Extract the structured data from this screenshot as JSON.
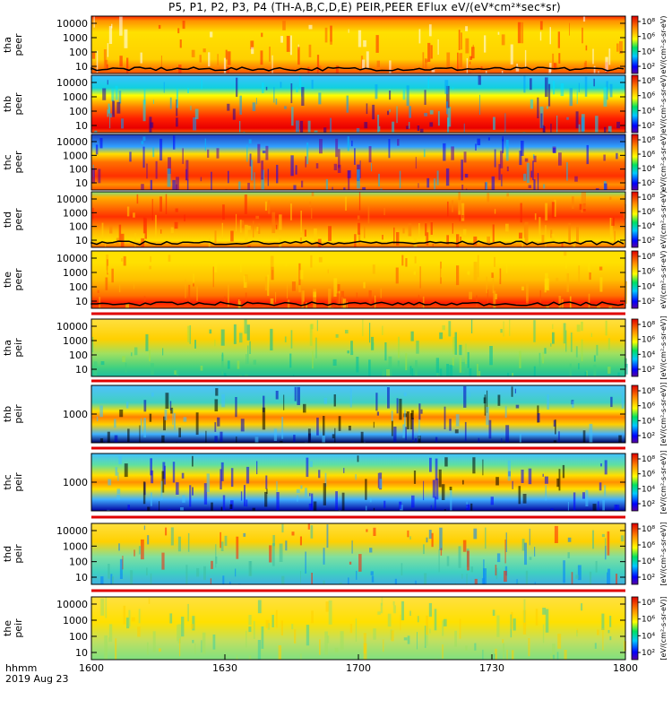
{
  "title": "P5, P1, P2, P3, P4 (TH-A,B,C,D,E) PEIR,PEER EFlux eV/(eV*cm²*sec*sr)",
  "footer": {
    "line1": "hhmm",
    "line2": "2019 Aug 23"
  },
  "chart_data": {
    "type": "heatmap",
    "x": {
      "ticks": [
        "1600",
        "1630",
        "1700",
        "1730",
        "1800"
      ],
      "range": [
        "16:00",
        "18:00"
      ]
    },
    "colorbar": {
      "scale": "log",
      "ticks": [
        "10²",
        "10⁴",
        "10⁶",
        "10⁸"
      ],
      "unit_label_peer": "eV/(cm²-s-sr-eV)",
      "unit_label_peir": "[eV/(cm²-s-sr-eV)]"
    },
    "panels": [
      {
        "label": [
          "tha",
          "peer"
        ],
        "yscale": "log",
        "yticks": [
          "10000",
          "1000",
          "100",
          "10"
        ]
      },
      {
        "label": [
          "thb",
          "peer"
        ],
        "yscale": "log",
        "yticks": [
          "10000",
          "1000",
          "100",
          "10"
        ]
      },
      {
        "label": [
          "thc",
          "peer"
        ],
        "yscale": "log",
        "yticks": [
          "10000",
          "1000",
          "100",
          "10"
        ]
      },
      {
        "label": [
          "thd",
          "peer"
        ],
        "yscale": "log",
        "yticks": [
          "10000",
          "1000",
          "100",
          "10"
        ]
      },
      {
        "label": [
          "the",
          "peer"
        ],
        "yscale": "log",
        "yticks": [
          "10000",
          "1000",
          "100",
          "10"
        ]
      },
      {
        "label": [
          "tha",
          "peir"
        ],
        "yscale": "log",
        "yticks": [
          "10000",
          "1000",
          "100",
          "10"
        ]
      },
      {
        "label": [
          "thb",
          "peir"
        ],
        "yscale": "log",
        "yticks": [
          "1000"
        ]
      },
      {
        "label": [
          "thc",
          "peir"
        ],
        "yscale": "log",
        "yticks": [
          "1000"
        ]
      },
      {
        "label": [
          "thd",
          "peir"
        ],
        "yscale": "log",
        "yticks": [
          "10000",
          "1000",
          "100",
          "10"
        ]
      },
      {
        "label": [
          "the",
          "peir"
        ],
        "yscale": "log",
        "yticks": [
          "10000",
          "1000",
          "100",
          "10"
        ]
      }
    ]
  }
}
